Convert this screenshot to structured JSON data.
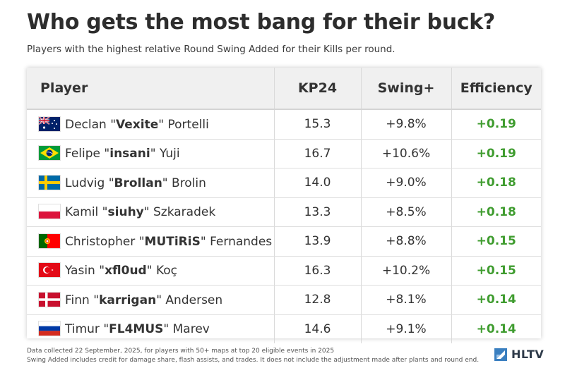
{
  "title": "Who gets the most bang for their buck?",
  "subtitle": "Players with the highest relative Round Swing Added for their Kills per round.",
  "chart_data": {
    "type": "table",
    "columns": [
      "Player",
      "KP24",
      "Swing+",
      "Efficiency"
    ],
    "rows": [
      {
        "first": "Declan ",
        "nick": "Vexite",
        "last": "Portelli",
        "flag": "australia-flag-icon",
        "kp24": "15.3",
        "swing": "+9.8%",
        "efficiency": "+0.19"
      },
      {
        "first": "Felipe",
        "nick": "insani",
        "last": "Yuji",
        "flag": "brazil-flag-icon",
        "kp24": "16.7",
        "swing": "+10.6%",
        "efficiency": "+0.19"
      },
      {
        "first": "Ludvig",
        "nick": "Brollan",
        "last": "Brolin",
        "flag": "sweden-flag-icon",
        "kp24": "14.0",
        "swing": "+9.0%",
        "efficiency": "+0.18"
      },
      {
        "first": "Kamil",
        "nick": "siuhy",
        "last": "Szkaradek",
        "flag": "poland-flag-icon",
        "kp24": "13.3",
        "swing": "+8.5%",
        "efficiency": "+0.18"
      },
      {
        "first": "Christopher",
        "nick": "MUTiRiS",
        "last": "Fernandes",
        "flag": "portugal-flag-icon",
        "kp24": "13.9",
        "swing": "+8.8%",
        "efficiency": "+0.15"
      },
      {
        "first": "Yasin",
        "nick": "xfl0ud",
        "last": "Koç",
        "flag": "turkey-flag-icon",
        "kp24": "16.3",
        "swing": "+10.2%",
        "efficiency": "+0.15"
      },
      {
        "first": "Finn",
        "nick": "karrigan",
        "last": "Andersen",
        "flag": "denmark-flag-icon",
        "kp24": "12.8",
        "swing": "+8.1%",
        "efficiency": "+0.14"
      },
      {
        "first": "Timur",
        "nick": "FL4MUS",
        "last": "Marev",
        "flag": "russia-flag-icon",
        "kp24": "14.6",
        "swing": "+9.1%",
        "efficiency": "+0.14"
      }
    ]
  },
  "footnotes": [
    "Data collected 22 September, 2025, for players with 50+ maps at top 20 eligible events in 2025",
    "Swing Added includes credit for damage share, flash assists, and trades. It does not include the adjustment made after plants and round end."
  ],
  "brand": "HLTV",
  "colors": {
    "efficiency": "#3f9c2f",
    "header_bg": "#f0f0f0"
  }
}
